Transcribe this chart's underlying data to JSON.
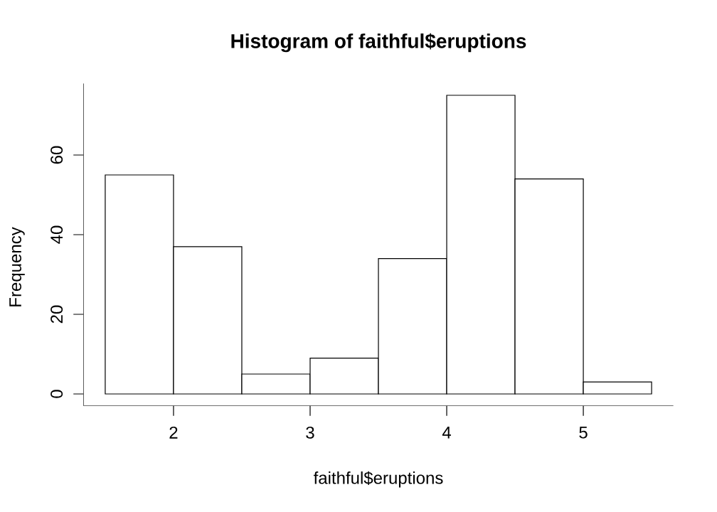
{
  "chart_data": {
    "type": "histogram",
    "title": "Histogram of faithful$eruptions",
    "xlabel": "faithful$eruptions",
    "ylabel": "Frequency",
    "bins": [
      1.5,
      2,
      2.5,
      3,
      3.5,
      4,
      4.5,
      5,
      5.5
    ],
    "values": [
      55,
      37,
      5,
      9,
      34,
      75,
      54,
      3
    ],
    "color": "#ffffff",
    "xlim": [
      1.34,
      5.66
    ],
    "ylim": [
      -3,
      78
    ],
    "xticks": [
      2,
      3,
      4,
      5
    ],
    "yticks": [
      0,
      20,
      40,
      60
    ]
  }
}
